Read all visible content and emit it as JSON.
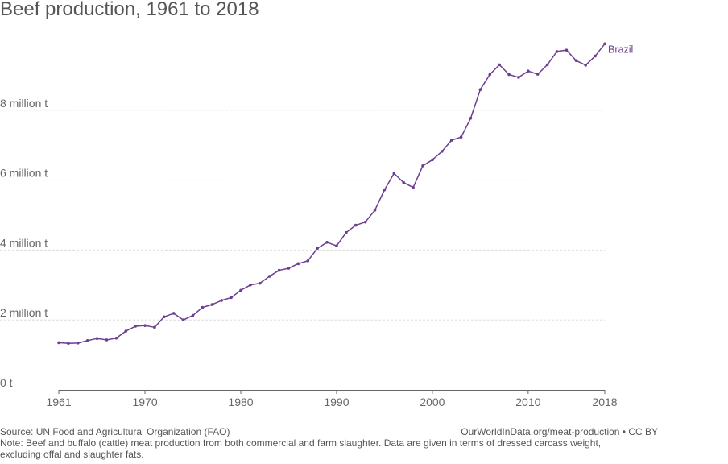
{
  "title": "Beef production, 1961 to 2018",
  "footer": {
    "source": "Source: UN Food and Agricultural Organization (FAO)",
    "attribution": "OurWorldInData.org/meat-production • CC BY",
    "note": "Note: Beef and buffalo (cattle) meat production from both commercial and farm slaughter. Data are given in terms of dressed carcass weight, excluding offal and slaughter fats."
  },
  "colors": {
    "series": "#6d3e91",
    "grid": "#dddddd",
    "axis": "#666666"
  },
  "chart_data": {
    "type": "line",
    "title": "Beef production, 1961 to 2018",
    "xlabel": "",
    "ylabel": "",
    "xlim": [
      1961,
      2018
    ],
    "ylim": [
      0,
      10000000
    ],
    "x_ticks": [
      {
        "value": 1961,
        "label": "1961"
      },
      {
        "value": 1970,
        "label": "1970"
      },
      {
        "value": 1980,
        "label": "1980"
      },
      {
        "value": 1990,
        "label": "1990"
      },
      {
        "value": 2000,
        "label": "2000"
      },
      {
        "value": 2010,
        "label": "2010"
      },
      {
        "value": 2018,
        "label": "2018"
      }
    ],
    "y_ticks": [
      {
        "value": 0,
        "label": "0 t"
      },
      {
        "value": 2000000,
        "label": "2 million t"
      },
      {
        "value": 4000000,
        "label": "4 million t"
      },
      {
        "value": 6000000,
        "label": "6 million t"
      },
      {
        "value": 8000000,
        "label": "8 million t"
      }
    ],
    "grid": true,
    "series": [
      {
        "name": "Brazil",
        "x": [
          1961,
          1962,
          1963,
          1964,
          1965,
          1966,
          1967,
          1968,
          1969,
          1970,
          1971,
          1972,
          1973,
          1974,
          1975,
          1976,
          1977,
          1978,
          1979,
          1980,
          1981,
          1982,
          1983,
          1984,
          1985,
          1986,
          1987,
          1988,
          1989,
          1990,
          1991,
          1992,
          1993,
          1994,
          1995,
          1996,
          1997,
          1998,
          1999,
          2000,
          2001,
          2002,
          2003,
          2004,
          2005,
          2006,
          2007,
          2008,
          2009,
          2010,
          2011,
          2012,
          2013,
          2014,
          2015,
          2016,
          2017,
          2018
        ],
        "values": [
          1350000,
          1330000,
          1340000,
          1410000,
          1470000,
          1430000,
          1480000,
          1680000,
          1820000,
          1840000,
          1790000,
          2090000,
          2190000,
          2000000,
          2130000,
          2360000,
          2440000,
          2560000,
          2640000,
          2850000,
          3000000,
          3050000,
          3250000,
          3420000,
          3480000,
          3610000,
          3690000,
          4050000,
          4220000,
          4120000,
          4500000,
          4710000,
          4800000,
          5140000,
          5720000,
          6190000,
          5930000,
          5790000,
          6410000,
          6580000,
          6820000,
          7140000,
          7230000,
          7770000,
          8590000,
          9020000,
          9300000,
          9020000,
          8940000,
          9120000,
          9030000,
          9300000,
          9680000,
          9720000,
          9420000,
          9290000,
          9550000,
          9900000
        ]
      }
    ]
  }
}
